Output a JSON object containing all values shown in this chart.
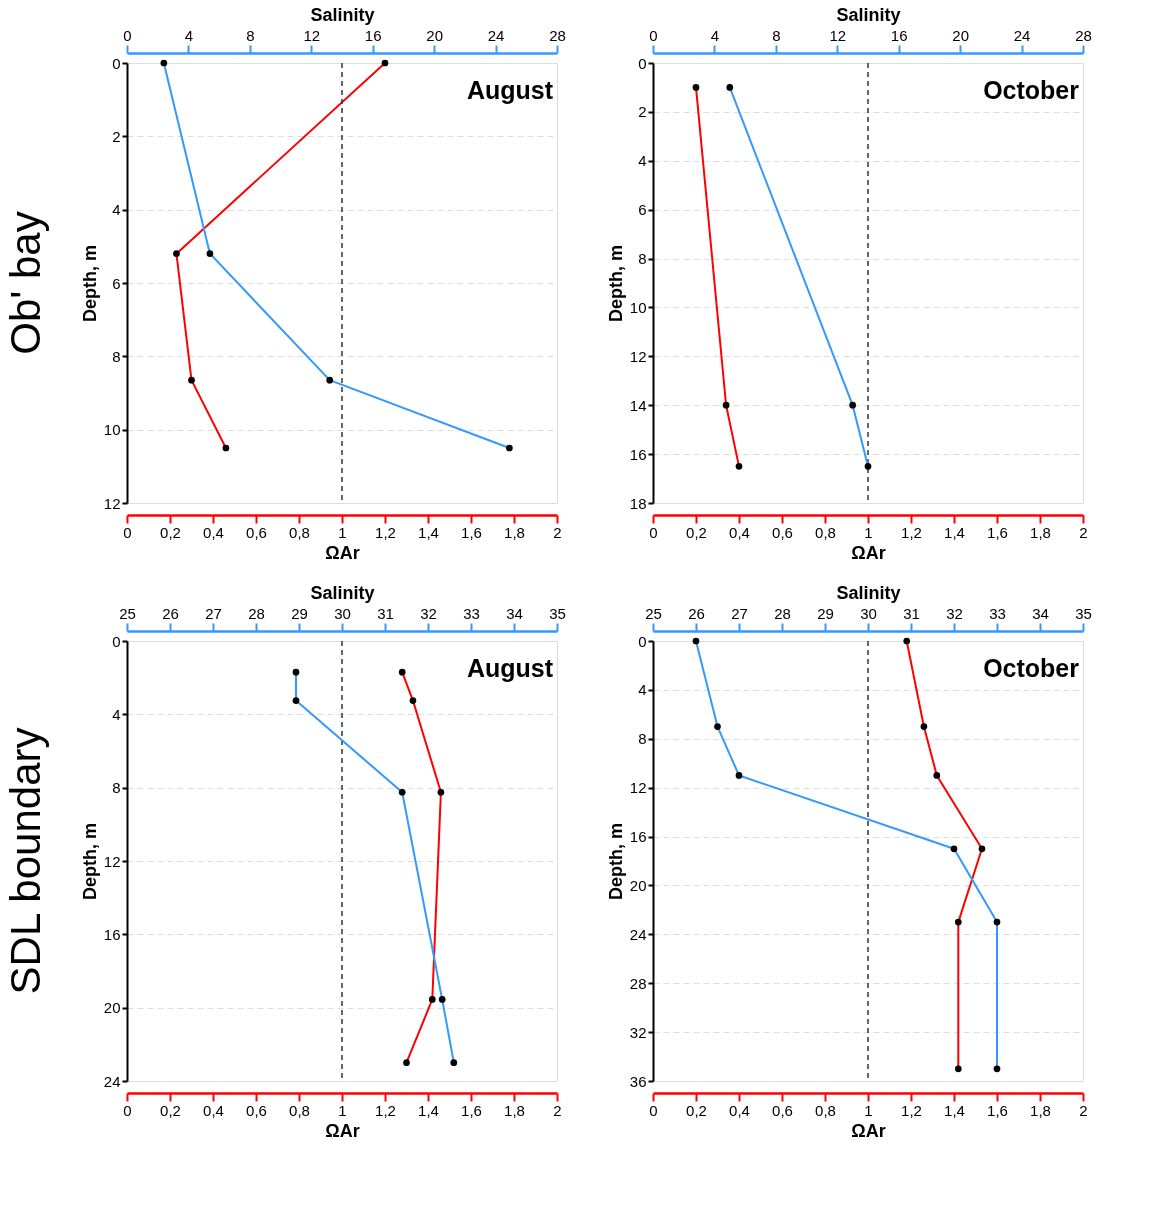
{
  "chart_data": [
    {
      "type": "line",
      "title": "August",
      "annotations": [
        "Ob' bay"
      ],
      "xlabel": "ΩAr",
      "x2label": "Salinity",
      "ylabel": "Depth, m",
      "xlim": [
        0,
        2
      ],
      "xticks": [
        0,
        {
          "value": 0.2,
          "label": "0,2"
        },
        {
          "value": 0.4,
          "label": "0,4"
        },
        {
          "value": 0.6,
          "label": "0,6"
        },
        {
          "value": 0.8,
          "label": "0,8"
        },
        1,
        {
          "value": 1.2,
          "label": "1,2"
        },
        {
          "value": 1.4,
          "label": "1,4"
        },
        {
          "value": 1.6,
          "label": "1,6"
        },
        {
          "value": 1.8,
          "label": "1,8"
        },
        2
      ],
      "x2lim": [
        0,
        28
      ],
      "x2ticks": [
        0,
        4,
        8,
        12,
        16,
        20,
        24,
        28
      ],
      "ylim": [
        12,
        0
      ],
      "yticks": [
        0,
        2,
        4,
        6,
        8,
        10,
        12
      ],
      "grid": "y",
      "marker": "circle",
      "line_style": "solid",
      "ref_lines": [
        {
          "axis": "x",
          "value": 1,
          "color": "#333333",
          "line_style": "dashed"
        }
      ],
      "series": [
        {
          "color": "#ff0000",
          "x": [
            1.2,
            0.23,
            0.3,
            0.46
          ],
          "values": [
            0,
            5.2,
            8.65,
            10.5
          ]
        },
        {
          "color": "#3399ff",
          "axis": "x2",
          "x": [
            2.4,
            5.4,
            13.2,
            24.9
          ],
          "values": [
            0,
            5.2,
            8.65,
            10.5
          ]
        }
      ]
    },
    {
      "type": "line",
      "title": "October",
      "xlabel": "ΩAr",
      "x2label": "Salinity",
      "ylabel": "Depth, m",
      "xlim": [
        0,
        2
      ],
      "xticks": [
        0,
        {
          "value": 0.2,
          "label": "0,2"
        },
        {
          "value": 0.4,
          "label": "0,4"
        },
        {
          "value": 0.6,
          "label": "0,6"
        },
        {
          "value": 0.8,
          "label": "0,8"
        },
        1,
        {
          "value": 1.2,
          "label": "1,2"
        },
        {
          "value": 1.4,
          "label": "1,4"
        },
        {
          "value": 1.6,
          "label": "1,6"
        },
        {
          "value": 1.8,
          "label": "1,8"
        },
        2
      ],
      "x2lim": [
        0,
        28
      ],
      "x2ticks": [
        0,
        4,
        8,
        12,
        16,
        20,
        24,
        28
      ],
      "ylim": [
        18,
        0
      ],
      "yticks": [
        0,
        2,
        4,
        6,
        8,
        10,
        12,
        14,
        16,
        18
      ],
      "grid": "y",
      "marker": "circle",
      "line_style": "solid",
      "ref_lines": [
        {
          "axis": "x",
          "value": 1,
          "color": "#333333",
          "line_style": "dashed"
        }
      ],
      "series": [
        {
          "color": "#ff0000",
          "x": [
            0.2,
            0.34,
            0.4
          ],
          "values": [
            1,
            14,
            16.5
          ]
        },
        {
          "color": "#3399ff",
          "axis": "x2",
          "x": [
            5.0,
            13.0,
            14.0
          ],
          "values": [
            1,
            14,
            16.5
          ]
        }
      ]
    },
    {
      "type": "line",
      "title": "August",
      "annotations": [
        "SDL boundary"
      ],
      "xlabel": "ΩAr",
      "x2label": "Salinity",
      "ylabel": "Depth, m",
      "xlim": [
        0,
        2
      ],
      "xticks": [
        0,
        {
          "value": 0.2,
          "label": "0,2"
        },
        {
          "value": 0.4,
          "label": "0,4"
        },
        {
          "value": 0.6,
          "label": "0,6"
        },
        {
          "value": 0.8,
          "label": "0,8"
        },
        1,
        {
          "value": 1.2,
          "label": "1,2"
        },
        {
          "value": 1.4,
          "label": "1,4"
        },
        {
          "value": 1.6,
          "label": "1,6"
        },
        {
          "value": 1.8,
          "label": "1,8"
        },
        2
      ],
      "x2lim": [
        25,
        35
      ],
      "x2ticks": [
        25,
        26,
        27,
        28,
        29,
        30,
        31,
        32,
        33,
        34,
        35
      ],
      "ylim": [
        24,
        0
      ],
      "yticks": [
        0,
        4,
        8,
        12,
        16,
        20,
        24
      ],
      "grid": "y",
      "marker": "circle",
      "line_style": "solid",
      "ref_lines": [
        {
          "axis": "x",
          "value": 1,
          "color": "#333333",
          "line_style": "dashed"
        }
      ],
      "series": [
        {
          "color": "#ff0000",
          "x": [
            1.28,
            1.33,
            1.46,
            1.42,
            1.3
          ],
          "values": [
            1.7,
            3.25,
            8.25,
            19.55,
            23
          ]
        },
        {
          "color": "#3399ff",
          "axis": "x2",
          "x": [
            28.93,
            28.93,
            31.4,
            32.33,
            32.6
          ],
          "values": [
            1.7,
            3.25,
            8.25,
            19.55,
            23
          ]
        }
      ]
    },
    {
      "type": "line",
      "title": "October",
      "xlabel": "ΩAr",
      "x2label": "Salinity",
      "ylabel": "Depth, m",
      "xlim": [
        0,
        2
      ],
      "xticks": [
        0,
        {
          "value": 0.2,
          "label": "0,2"
        },
        {
          "value": 0.4,
          "label": "0,4"
        },
        {
          "value": 0.6,
          "label": "0,6"
        },
        {
          "value": 0.8,
          "label": "0,8"
        },
        1,
        {
          "value": 1.2,
          "label": "1,2"
        },
        {
          "value": 1.4,
          "label": "1,4"
        },
        {
          "value": 1.6,
          "label": "1,6"
        },
        {
          "value": 1.8,
          "label": "1,8"
        },
        2
      ],
      "x2lim": [
        25,
        35
      ],
      "x2ticks": [
        25,
        26,
        27,
        28,
        29,
        30,
        31,
        32,
        33,
        34,
        35
      ],
      "ylim": [
        36,
        0
      ],
      "yticks": [
        0,
        4,
        8,
        12,
        16,
        20,
        24,
        28,
        32,
        36
      ],
      "grid": "y",
      "marker": "circle",
      "line_style": "solid",
      "ref_lines": [
        {
          "axis": "x",
          "value": 1,
          "color": "#333333",
          "line_style": "dashed"
        }
      ],
      "series": [
        {
          "color": "#ff0000",
          "x": [
            1.18,
            1.26,
            1.32,
            1.53,
            1.42,
            1.42
          ],
          "values": [
            0,
            7,
            11,
            17,
            23,
            35
          ]
        },
        {
          "color": "#3399ff",
          "axis": "x2",
          "x": [
            26.0,
            26.5,
            27.0,
            32.0,
            33.0,
            33.0
          ],
          "values": [
            0,
            7,
            11,
            17,
            23,
            35
          ]
        }
      ]
    }
  ]
}
